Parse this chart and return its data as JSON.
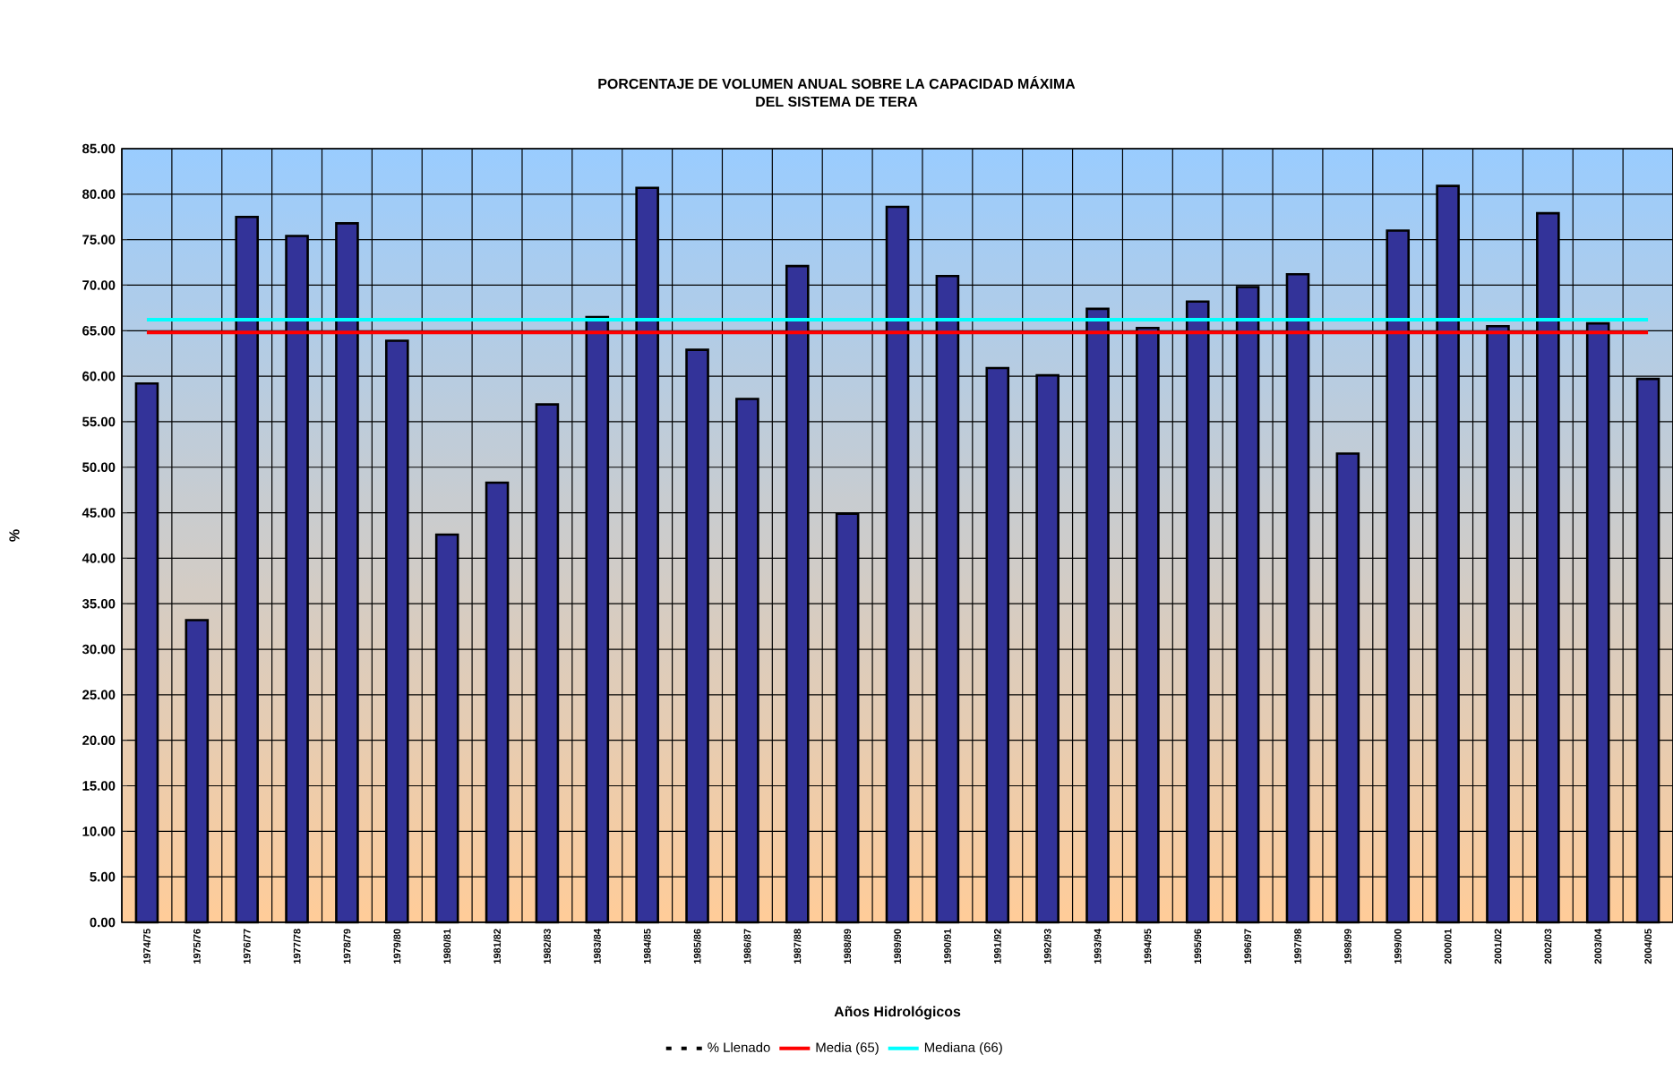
{
  "chart_data": {
    "type": "bar",
    "title": "PORCENTAJE DE VOLUMEN ANUAL SOBRE LA CAPACIDAD MÁXIMA\nDEL SISTEMA DE TERA",
    "xlabel": "Años Hidrológicos",
    "ylabel": "%",
    "categories": [
      "1974/75",
      "1975/76",
      "1976/77",
      "1977/78",
      "1978/79",
      "1979/80",
      "1980/81",
      "1981/82",
      "1982/83",
      "1983/84",
      "1984/85",
      "1985/86",
      "1986/87",
      "1987/88",
      "1988/89",
      "1989/90",
      "1990/91",
      "1991/92",
      "1992/93",
      "1993/94",
      "1994/95",
      "1995/96",
      "1996/97",
      "1997/98",
      "1998/99",
      "1999/00",
      "2000/01",
      "2001/02",
      "2002/03",
      "2003/04",
      "2004/05"
    ],
    "series": [
      {
        "name": "% Llenado",
        "color": "#333399",
        "values": [
          59.2,
          33.2,
          77.5,
          75.4,
          76.8,
          63.9,
          42.6,
          48.3,
          56.9,
          66.5,
          80.7,
          62.9,
          57.5,
          72.1,
          44.9,
          78.6,
          71.0,
          60.9,
          60.1,
          67.4,
          65.3,
          68.2,
          69.8,
          71.2,
          51.5,
          76.0,
          80.9,
          65.5,
          77.9,
          65.8,
          59.7
        ]
      }
    ],
    "ref_lines": [
      {
        "axis": "y",
        "value": 64.8,
        "label": "Media (65)",
        "color": "#ff0000"
      },
      {
        "axis": "y",
        "value": 66.2,
        "label": "Mediana (66)",
        "color": "#00ffff"
      }
    ],
    "ylim": [
      0,
      85
    ],
    "yticks": [
      {
        "value": 0,
        "label": "0.00"
      },
      {
        "value": 5,
        "label": "5.00"
      },
      {
        "value": 10,
        "label": "10.00"
      },
      {
        "value": 15,
        "label": "15.00"
      },
      {
        "value": 20,
        "label": "20.00"
      },
      {
        "value": 25,
        "label": "25.00"
      },
      {
        "value": 30,
        "label": "30.00"
      },
      {
        "value": 35,
        "label": "35.00"
      },
      {
        "value": 40,
        "label": "40.00"
      },
      {
        "value": 45,
        "label": "45.00"
      },
      {
        "value": 50,
        "label": "50.00"
      },
      {
        "value": 55,
        "label": "55.00"
      },
      {
        "value": 60,
        "label": "60.00"
      },
      {
        "value": 65,
        "label": "65.00"
      },
      {
        "value": 70,
        "label": "70.00"
      },
      {
        "value": 75,
        "label": "75.00"
      },
      {
        "value": 80,
        "label": "80.00"
      },
      {
        "value": 85,
        "label": "85.00"
      }
    ],
    "grid": true,
    "legend": "bottom"
  }
}
